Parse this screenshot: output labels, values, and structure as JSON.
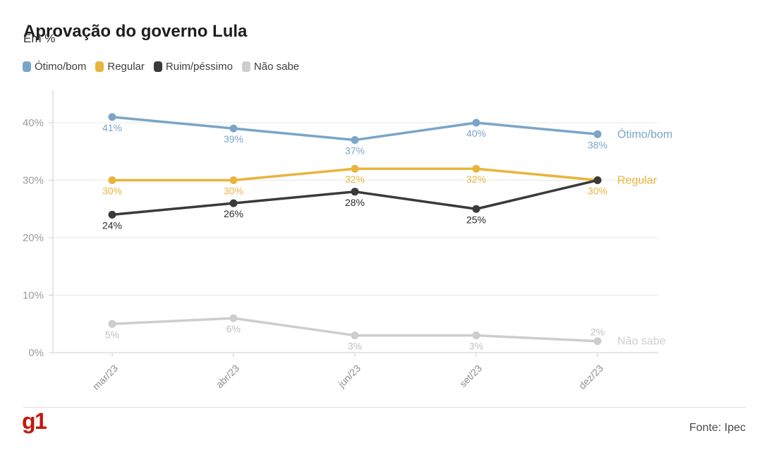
{
  "page": {
    "title": "Aprovação do governo Lula",
    "subtitle": "Em %",
    "source": "Fonte: Ipec",
    "brand": "g1",
    "brand_color": "#c4170c"
  },
  "chart_data": {
    "type": "line",
    "title": "Aprovação do governo Lula",
    "subtitle": "Em %",
    "categories": [
      "mar/23",
      "abr/23",
      "jun/23",
      "set/23",
      "dez/23"
    ],
    "series": [
      {
        "name": "Ótimo/bom",
        "color": "#7aa5c8",
        "label_color": "#7aa5c8",
        "values": [
          41,
          39,
          37,
          40,
          38
        ],
        "point_labels": [
          "41%",
          "39%",
          "37%",
          "40%",
          "38%"
        ],
        "label_placement": [
          "below",
          "below",
          "below",
          "below",
          "below"
        ],
        "end_label": "Ótimo/bom"
      },
      {
        "name": "Regular",
        "color": "#e9b43d",
        "label_color": "#e9b43d",
        "values": [
          30,
          30,
          32,
          32,
          30
        ],
        "point_labels": [
          "30%",
          "30%",
          "32%",
          "32%",
          "30%"
        ],
        "label_placement": [
          "below",
          "below",
          "below",
          "below",
          "below"
        ],
        "end_label": "Regular"
      },
      {
        "name": "Ruim/péssimo",
        "color": "#3a3a3a",
        "label_color": "#2b2b2b",
        "values": [
          24,
          26,
          28,
          25,
          30
        ],
        "point_labels": [
          "24%",
          "26%",
          "28%",
          "25%",
          null
        ],
        "label_placement": [
          "below",
          "below",
          "below",
          "below",
          "below"
        ],
        "end_label": null
      },
      {
        "name": "Não sabe",
        "color": "#cdcdcd",
        "label_color": "#bfbfbf",
        "values": [
          5,
          6,
          3,
          3,
          2
        ],
        "point_labels": [
          "5%",
          "6%",
          "3%",
          "3%",
          "2%"
        ],
        "label_placement": [
          "below",
          "below",
          "below",
          "below",
          "above"
        ],
        "end_label": "Não sabe"
      }
    ],
    "y_axis": {
      "ticks": [
        0,
        10,
        20,
        30,
        40
      ],
      "tick_labels": [
        "0%",
        "10%",
        "20%",
        "30%",
        "40%"
      ],
      "range": [
        0,
        45
      ],
      "unit": "%"
    },
    "x_label_rotation": -45,
    "grid": true,
    "legend_position": "top-left"
  }
}
